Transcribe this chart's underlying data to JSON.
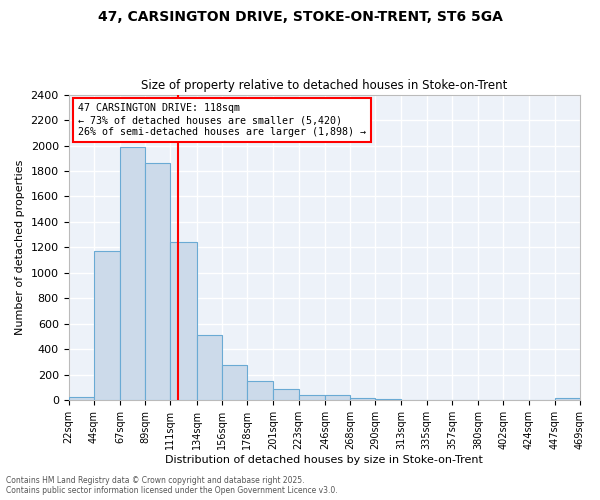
{
  "title_line1": "47, CARSINGTON DRIVE, STOKE-ON-TRENT, ST6 5GA",
  "title_line2": "Size of property relative to detached houses in Stoke-on-Trent",
  "xlabel": "Distribution of detached houses by size in Stoke-on-Trent",
  "ylabel": "Number of detached properties",
  "bar_color": "#ccdaea",
  "bar_edge_color": "#6aaad4",
  "background_color": "#edf2f9",
  "grid_color": "#ffffff",
  "vline_x": 118,
  "vline_color": "red",
  "annotation_title": "47 CARSINGTON DRIVE: 118sqm",
  "annotation_line1": "← 73% of detached houses are smaller (5,420)",
  "annotation_line2": "26% of semi-detached houses are larger (1,898) →",
  "bins": [
    22,
    44,
    67,
    89,
    111,
    134,
    156,
    178,
    201,
    223,
    246,
    268,
    290,
    313,
    335,
    357,
    380,
    402,
    424,
    447,
    469
  ],
  "counts": [
    25,
    1170,
    1990,
    1860,
    1240,
    515,
    275,
    150,
    90,
    45,
    40,
    20,
    10,
    5,
    3,
    2,
    2,
    2,
    1,
    15
  ],
  "ylim": [
    0,
    2400
  ],
  "yticks": [
    0,
    200,
    400,
    600,
    800,
    1000,
    1200,
    1400,
    1600,
    1800,
    2000,
    2200,
    2400
  ],
  "footnote1": "Contains HM Land Registry data © Crown copyright and database right 2025.",
  "footnote2": "Contains public sector information licensed under the Open Government Licence v3.0."
}
